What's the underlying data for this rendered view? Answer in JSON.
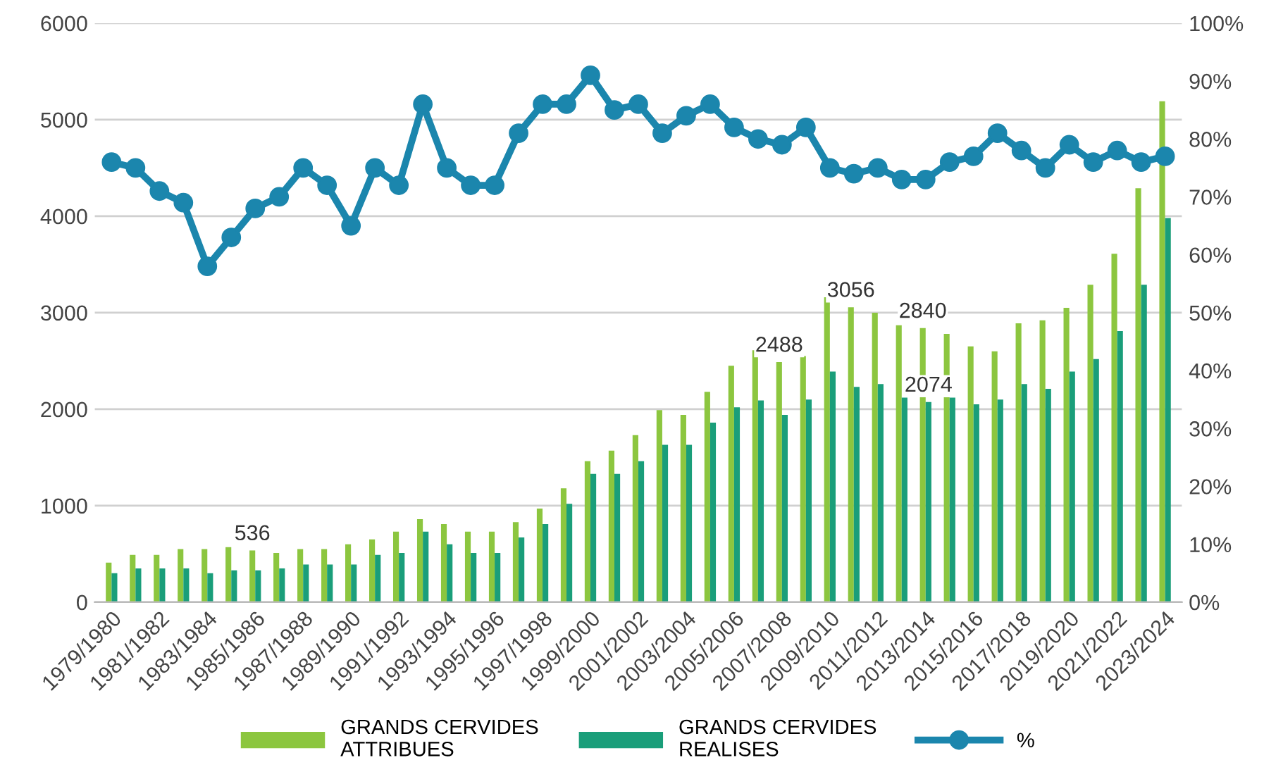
{
  "chart_data": {
    "type": "bar",
    "categories": [
      "1979/1980",
      null,
      "1981/1982",
      null,
      "1983/1984",
      null,
      "1985/1986",
      null,
      "1987/1988",
      null,
      "1989/1990",
      null,
      "1991/1992",
      null,
      "1993/1994",
      null,
      "1995/1996",
      null,
      "1997/1998",
      null,
      "1999/2000",
      null,
      "2001/2002",
      null,
      "2003/2004",
      null,
      "2005/2006",
      null,
      "2007/2008",
      null,
      "2009/2010",
      null,
      "2011/2012",
      null,
      "2013/2014",
      null,
      "2015/2016",
      null,
      "2017/2018",
      null,
      "2019/2020",
      null,
      "2021/2022",
      null,
      "2023/2024"
    ],
    "series": [
      {
        "name": "GRANDS CERVIDES ATTRIBUES",
        "color": "#8cc63f",
        "values": [
          410,
          490,
          490,
          550,
          550,
          570,
          536,
          510,
          550,
          550,
          600,
          650,
          730,
          860,
          810,
          730,
          730,
          830,
          970,
          1180,
          1460,
          1570,
          1730,
          1990,
          1940,
          2180,
          2450,
          2610,
          2488,
          2550,
          3160,
          3056,
          3000,
          2870,
          2840,
          2780,
          2650,
          2600,
          2890,
          2920,
          3050,
          3290,
          3610,
          4290,
          5190
        ],
        "value_labels": [
          null,
          null,
          null,
          null,
          null,
          null,
          "536",
          null,
          null,
          null,
          null,
          null,
          null,
          null,
          null,
          null,
          null,
          null,
          null,
          null,
          null,
          null,
          null,
          null,
          null,
          null,
          null,
          null,
          "2488",
          null,
          null,
          "3056",
          null,
          null,
          "2840",
          null,
          null,
          null,
          null,
          null,
          null,
          null,
          null,
          null,
          null
        ]
      },
      {
        "name": "GRANDS CERVIDES REALISES",
        "color": "#1a9e7a",
        "values": [
          300,
          350,
          350,
          350,
          300,
          330,
          330,
          350,
          390,
          390,
          390,
          490,
          510,
          730,
          600,
          510,
          510,
          670,
          810,
          1020,
          1330,
          1330,
          1460,
          1630,
          1630,
          1860,
          2020,
          2090,
          1940,
          2100,
          2390,
          2230,
          2260,
          2120,
          2074,
          2120,
          2050,
          2100,
          2260,
          2210,
          2390,
          2520,
          2810,
          3290,
          3980
        ],
        "value_labels": [
          null,
          null,
          null,
          null,
          null,
          null,
          null,
          null,
          null,
          null,
          null,
          null,
          null,
          null,
          null,
          null,
          null,
          null,
          null,
          null,
          null,
          null,
          null,
          null,
          null,
          null,
          null,
          null,
          null,
          null,
          null,
          null,
          null,
          null,
          "2074",
          null,
          null,
          null,
          null,
          null,
          null,
          null,
          null,
          null,
          null
        ]
      },
      {
        "name": "%",
        "type": "line",
        "axis": "y2",
        "color": "#1b86ad",
        "marker": "circle",
        "values": [
          76,
          75,
          71,
          69,
          58,
          63,
          68,
          70,
          75,
          72,
          65,
          75,
          72,
          86,
          75,
          72,
          72,
          81,
          86,
          86,
          91,
          85,
          86,
          81,
          84,
          86,
          82,
          80,
          79,
          82,
          75,
          74,
          75,
          73,
          73,
          76,
          77,
          81,
          78,
          75,
          79,
          76,
          78,
          76,
          77
        ]
      }
    ],
    "ylim": [
      0,
      6000
    ],
    "yticks": [
      0,
      1000,
      2000,
      3000,
      4000,
      5000,
      6000
    ],
    "y2lim": [
      0,
      100
    ],
    "y2ticks": [
      {
        "value": 0,
        "label": "0%"
      },
      {
        "value": 10,
        "label": "10%"
      },
      {
        "value": 20,
        "label": "20%"
      },
      {
        "value": 30,
        "label": "30%"
      },
      {
        "value": 40,
        "label": "40%"
      },
      {
        "value": 50,
        "label": "50%"
      },
      {
        "value": 60,
        "label": "60%"
      },
      {
        "value": 70,
        "label": "70%"
      },
      {
        "value": 80,
        "label": "80%"
      },
      {
        "value": 90,
        "label": "90%"
      },
      {
        "value": 100,
        "label": "100%"
      }
    ],
    "grid": "y",
    "legend": "bottom"
  }
}
